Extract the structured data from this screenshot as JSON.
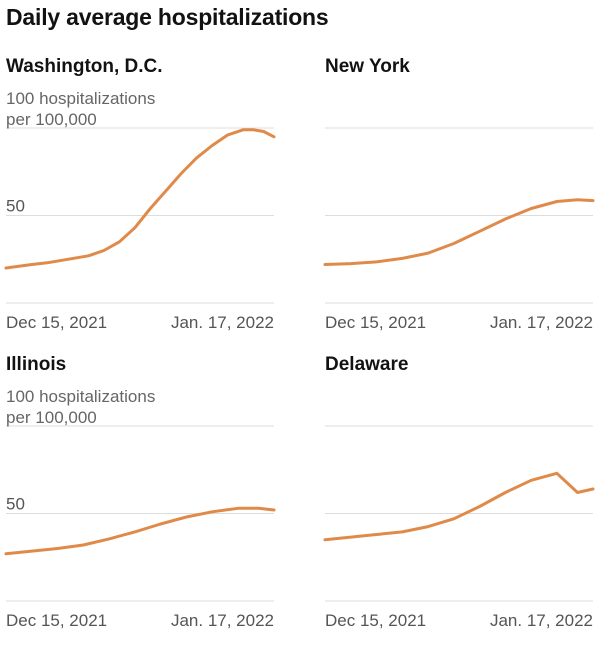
{
  "title": "Daily average hospitalizations",
  "y_unit_label_line1": "100 hospitalizations",
  "y_unit_label_line2": "per 100,000",
  "line_color": "#e08a4a",
  "grid_color": "#dddddd",
  "chart_data": [
    {
      "type": "line",
      "title": "Washington, D.C.",
      "xlabel": "",
      "ylabel": "",
      "x_tick_labels": [
        "Dec 15, 2021",
        "Jan. 17, 2022"
      ],
      "y_ticks": [
        0,
        50,
        100
      ],
      "y_tick_labels_shown": [
        "100 hospitalizations per 100,000",
        "50"
      ],
      "ylim": [
        0,
        100
      ],
      "x": [
        "Dec 2, 2021",
        "Dec 7, 2021",
        "Dec 10, 2021",
        "Dec 14, 2021",
        "Dec 18, 2021",
        "Dec 21, 2021",
        "Dec 24, 2021",
        "Dec 27, 2021",
        "Dec 30, 2021",
        "Jan 2, 2022",
        "Jan 5, 2022",
        "Jan 8, 2022",
        "Jan 11, 2022",
        "Jan 14, 2022",
        "Jan 17, 2022",
        "Jan 19, 2022",
        "Jan 21, 2022",
        "Jan 23, 2022"
      ],
      "values": [
        20,
        22,
        23,
        25,
        27,
        30,
        35,
        43,
        54,
        64,
        74,
        83,
        90,
        96,
        99,
        99,
        98,
        95
      ]
    },
    {
      "type": "line",
      "title": "New York",
      "xlabel": "",
      "ylabel": "",
      "x_tick_labels": [
        "Dec 15, 2021",
        "Jan. 17, 2022"
      ],
      "y_ticks": [
        0,
        50,
        100
      ],
      "ylim": [
        0,
        100
      ],
      "x": [
        "Dec 2, 2021",
        "Dec 7, 2021",
        "Dec 12, 2021",
        "Dec 17, 2021",
        "Dec 22, 2021",
        "Dec 27, 2021",
        "Jan 1, 2022",
        "Jan 6, 2022",
        "Jan 11, 2022",
        "Jan 16, 2022",
        "Jan 20, 2022",
        "Jan 23, 2022"
      ],
      "values": [
        22,
        22.5,
        23.5,
        25.5,
        28.5,
        34,
        41,
        48,
        54,
        58,
        59,
        58.5
      ]
    },
    {
      "type": "line",
      "title": "Illinois",
      "xlabel": "",
      "ylabel": "",
      "x_tick_labels": [
        "Dec 15, 2021",
        "Jan. 17, 2022"
      ],
      "y_ticks": [
        0,
        50,
        100
      ],
      "y_tick_labels_shown": [
        "100 hospitalizations per 100,000",
        "50"
      ],
      "ylim": [
        0,
        100
      ],
      "x": [
        "Dec 2, 2021",
        "Dec 7, 2021",
        "Dec 12, 2021",
        "Dec 17, 2021",
        "Dec 22, 2021",
        "Dec 27, 2021",
        "Jan 1, 2022",
        "Jan 6, 2022",
        "Jan 11, 2022",
        "Jan 16, 2022",
        "Jan 20, 2022",
        "Jan 23, 2022"
      ],
      "values": [
        27,
        28.5,
        30,
        32,
        35.5,
        39.5,
        44,
        48,
        51,
        53,
        53,
        52
      ]
    },
    {
      "type": "line",
      "title": "Delaware",
      "xlabel": "",
      "ylabel": "",
      "x_tick_labels": [
        "Dec 15, 2021",
        "Jan. 17, 2022"
      ],
      "y_ticks": [
        0,
        50,
        100
      ],
      "ylim": [
        0,
        100
      ],
      "x": [
        "Dec 2, 2021",
        "Dec 7, 2021",
        "Dec 12, 2021",
        "Dec 17, 2021",
        "Dec 22, 2021",
        "Dec 27, 2021",
        "Jan 1, 2022",
        "Jan 6, 2022",
        "Jan 11, 2022",
        "Jan 16, 2022",
        "Jan 20, 2022",
        "Jan 23, 2022"
      ],
      "values": [
        35,
        36.5,
        38,
        39.5,
        42.5,
        47,
        54,
        62,
        69,
        73,
        62,
        64
      ]
    }
  ]
}
